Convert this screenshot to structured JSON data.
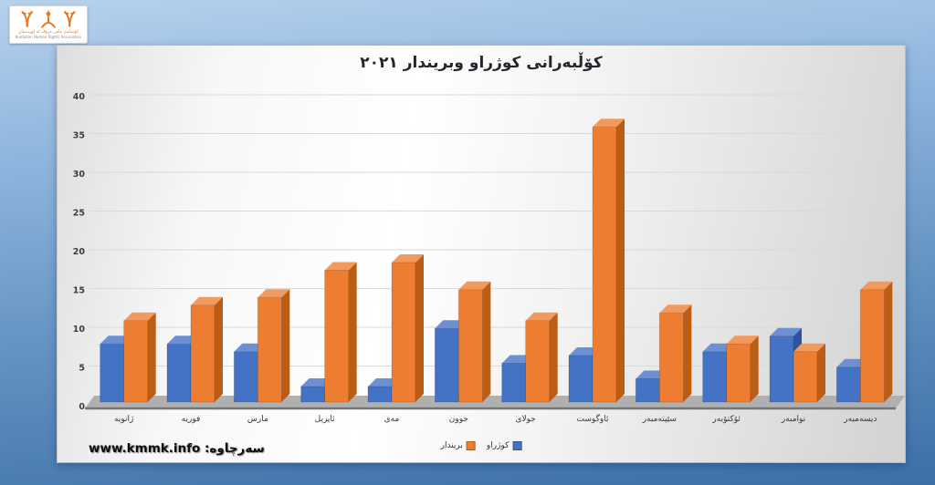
{
  "logo": {
    "org_name_ku": "کۆمەڵەی مافی مرۆڤ لە کوردستان",
    "org_name_en": "Kurdistan Human Rights Association",
    "accent_color": "#e87722"
  },
  "source": {
    "label": "سەرچاوە: www.kmmk.info"
  },
  "chart_data": {
    "type": "bar",
    "style": "3d-clustered-column",
    "title": "کۆڵبەرانی کوژراو  وبریندار ٢٠٢١",
    "direction": "rtl",
    "categories": [
      "ژانویه",
      "فوریه",
      "مارس",
      "ئاپریل",
      "مەی",
      "جوون",
      "جولای",
      "ئاوگوست",
      "سێپتەمبەر",
      "ئۆکتۆبەر",
      "نوامبەر",
      "دیسەمبەر"
    ],
    "series": [
      {
        "name": "کوژراو",
        "color": "#4472c4",
        "color_top": "#6d90d3",
        "color_side": "#2f549e",
        "values": [
          7.5,
          7.5,
          6.5,
          2,
          2,
          9.5,
          5,
          6,
          3,
          6.5,
          8.5,
          4.5
        ]
      },
      {
        "name": "بریندار",
        "color": "#ed7d31",
        "color_top": "#f29a5d",
        "color_side": "#bb5d14",
        "values": [
          10.5,
          12.5,
          13.5,
          17,
          18,
          14.5,
          10.5,
          35.5,
          11.5,
          7.5,
          6.5,
          14.5
        ]
      }
    ],
    "ylim": [
      0,
      40
    ],
    "ytick_step": 5,
    "grid": true,
    "legend_position": "bottom",
    "axis_label_color": "#3d3d3d",
    "gridline_color": "#d9d9d9",
    "floor_color": "#b0b0b0",
    "floor_edge_color": "#757575"
  }
}
